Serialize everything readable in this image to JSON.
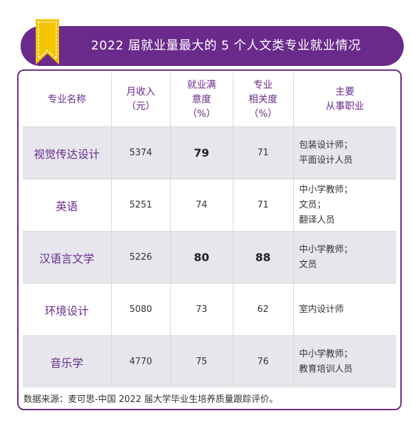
{
  "title": "2022 届就业量最大的 5 个人文类专业就业情况",
  "colors": {
    "accent": "#6a2a8c",
    "ribbon": "#f5c400",
    "shade": "#e6e6ec"
  },
  "headers": [
    [
      "专业名称"
    ],
    [
      "月收入",
      "（元）"
    ],
    [
      "就业满",
      "意度",
      "（%）"
    ],
    [
      "专业",
      "相关度",
      "（%）"
    ],
    [
      "主要",
      "从事职业"
    ]
  ],
  "rows": [
    {
      "major": "视觉传达设计",
      "income": "5374",
      "satisfaction": "79",
      "relevance": "71",
      "jobs": [
        "包装设计师；",
        "平面设计人员"
      ]
    },
    {
      "major": "英语",
      "income": "5251",
      "satisfaction": "74",
      "relevance": "71",
      "jobs": [
        "中小学教师；",
        "文员；",
        "翻译人员"
      ]
    },
    {
      "major": "汉语言文学",
      "income": "5226",
      "satisfaction": "80",
      "relevance": "88",
      "jobs": [
        "中小学教师；",
        "文员"
      ]
    },
    {
      "major": "环境设计",
      "income": "5080",
      "satisfaction": "73",
      "relevance": "62",
      "jobs": [
        "室内设计师"
      ]
    },
    {
      "major": "音乐学",
      "income": "4770",
      "satisfaction": "75",
      "relevance": "76",
      "jobs": [
        "中小学教师；",
        "教育培训人员"
      ]
    }
  ],
  "source": "数据来源：麦可思-中国 2022 届大学毕业生培养质量跟踪评价。"
}
